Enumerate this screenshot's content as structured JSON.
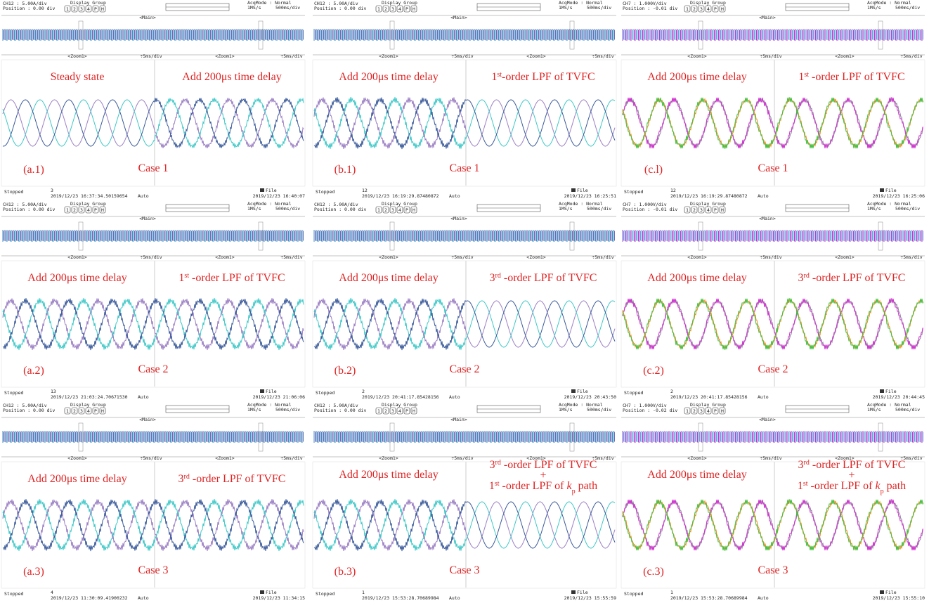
{
  "common": {
    "display_group": "Display Group",
    "group_buttons": [
      "1",
      "2",
      "3",
      "4",
      "P",
      "H"
    ],
    "acq_mode": "AcqMode : Normal",
    "sample_rate": "1MS/s",
    "timebase": "500ms/div",
    "main": "<Main>",
    "zoom": "<Zoom1>",
    "zoom_rate": "÷5ms/div",
    "stopped": "Stopped",
    "auto": "Auto",
    "file": "File"
  },
  "panels": [
    {
      "channel": "CH12   : 5.00A/div",
      "position": "Position : 0.00 div",
      "left_label": [
        [
          {
            "text": "Steady state"
          }
        ]
      ],
      "right_label": [
        [
          {
            "text": "Add 200μs time delay"
          }
        ]
      ],
      "tag": "(a.1)",
      "case": "Case 1",
      "count": "3",
      "start": "2019/12/23 16:37:34.50159654",
      "end": "2019/12/23 16:40:07"
    },
    {
      "channel": "CH12   : 5.00A/div",
      "position": "Position : 0.00 div",
      "left_label": [
        [
          {
            "text": "Add 200μs time delay"
          }
        ]
      ],
      "right_label": [
        [
          {
            "text": "1"
          },
          {
            "text": "st",
            "style": "sup"
          },
          {
            "text": "-order LPF of TVFC"
          }
        ]
      ],
      "tag": "(b.1)",
      "case": "Case 1",
      "count": "12",
      "start": "2019/12/23 16:19:29.87480872",
      "end": "2019/12/23 16:25:51"
    },
    {
      "channel": "CH7   : 1.000V/div",
      "position": "Position : -0.01 div",
      "left_label": [
        [
          {
            "text": "Add 200μs time delay"
          }
        ]
      ],
      "right_label": [
        [
          {
            "text": "1"
          },
          {
            "text": "st",
            "style": "sup"
          },
          {
            "text": " -order LPF of TVFC"
          }
        ]
      ],
      "tag": "(c.l)",
      "case": "Case 1",
      "count": "12",
      "start": "2019/12/23 16:19:29.87480872",
      "end": "2019/12/23 16:25:06"
    },
    {
      "channel": "CH12   : 5.00A/div",
      "position": "Position : 0.00 div",
      "left_label": [
        [
          {
            "text": "Add 200μs time delay"
          }
        ]
      ],
      "right_label": [
        [
          {
            "text": "1"
          },
          {
            "text": "st",
            "style": "sup"
          },
          {
            "text": " -order LPF of TVFC"
          }
        ]
      ],
      "tag": "(a.2)",
      "case": "Case 2",
      "count": "13",
      "start": "2019/12/23 21:03:24.70671530",
      "end": "2019/12/23 21:06:06"
    },
    {
      "channel": "CH12   : 5.00A/div",
      "position": "Position : 0.00 div",
      "left_label": [
        [
          {
            "text": "Add 200μs time delay"
          }
        ]
      ],
      "right_label": [
        [
          {
            "text": "3"
          },
          {
            "text": "rd",
            "style": "sup"
          },
          {
            "text": " -order LPF of TVFC"
          }
        ]
      ],
      "tag": "(b.2)",
      "case": "Case 2",
      "count": "2",
      "start": "2019/12/23 20:41:17.85428156",
      "end": "2019/12/23 20:43:50"
    },
    {
      "channel": "CH7   : 1.000V/div",
      "position": "Position : -0.01 div",
      "left_label": [
        [
          {
            "text": "Add 200μs time delay"
          }
        ]
      ],
      "right_label": [
        [
          {
            "text": "3"
          },
          {
            "text": "rd",
            "style": "sup"
          },
          {
            "text": " -order LPF of TVFC"
          }
        ]
      ],
      "tag": "(c.2)",
      "case": "Case 2",
      "count": "2",
      "start": "2019/12/23 20:41:17.85428156",
      "end": "2019/12/23 20:44:45"
    },
    {
      "channel": "CH12   : 5.00A/div",
      "position": "Position : 0.00 div",
      "left_label": [
        [
          {
            "text": "Add 200μs time delay"
          }
        ]
      ],
      "right_label": [
        [
          {
            "text": "3"
          },
          {
            "text": "rd",
            "style": "sup"
          },
          {
            "text": " -order LPF of TVFC"
          }
        ]
      ],
      "tag": "(a.3)",
      "case": "Case 3",
      "count": "4",
      "start": "2019/12/23 11:30:09.41900232",
      "end": "2019/12/23 11:34:15"
    },
    {
      "channel": "CH12   : 5.00A/div",
      "position": "Position : 0.00 div",
      "left_label": [
        [
          {
            "text": "Add 200μs time delay"
          }
        ]
      ],
      "right_label": [
        [
          {
            "text": "3"
          },
          {
            "text": "rd",
            "style": "sup"
          },
          {
            "text": " -order LPF of TVFC"
          }
        ],
        [
          {
            "text": "+"
          }
        ],
        [
          {
            "text": "1"
          },
          {
            "text": "st",
            "style": "sup"
          },
          {
            "text": " -order LPF of "
          },
          {
            "text": "k",
            "style": "italic"
          },
          {
            "text": "p",
            "style": "sub"
          },
          {
            "text": "  path"
          }
        ]
      ],
      "tag": "(b.3)",
      "case": "Case 3",
      "count": "1",
      "start": "2019/12/23 15:53:28.70689984",
      "end": "2019/12/23 15:55:59"
    },
    {
      "channel": "CH7   : 1.000V/div",
      "position": "Position : -0.02 div",
      "left_label": [
        [
          {
            "text": "Add 200μs time delay"
          }
        ]
      ],
      "right_label": [
        [
          {
            "text": "3"
          },
          {
            "text": "rd",
            "style": "sup"
          },
          {
            "text": " -order LPF of TVFC"
          }
        ],
        [
          {
            "text": "+"
          }
        ],
        [
          {
            "text": "1"
          },
          {
            "text": "st",
            "style": "sup"
          },
          {
            "text": " -order LPF of "
          },
          {
            "text": "k",
            "style": "italic"
          },
          {
            "text": "p",
            "style": "sub"
          },
          {
            "text": "  path"
          }
        ]
      ],
      "tag": "(c.3)",
      "case": "Case 3",
      "count": "1",
      "start": "2019/12/23 15:53:28.70689984",
      "end": "2019/12/23 15:55:10"
    }
  ]
}
